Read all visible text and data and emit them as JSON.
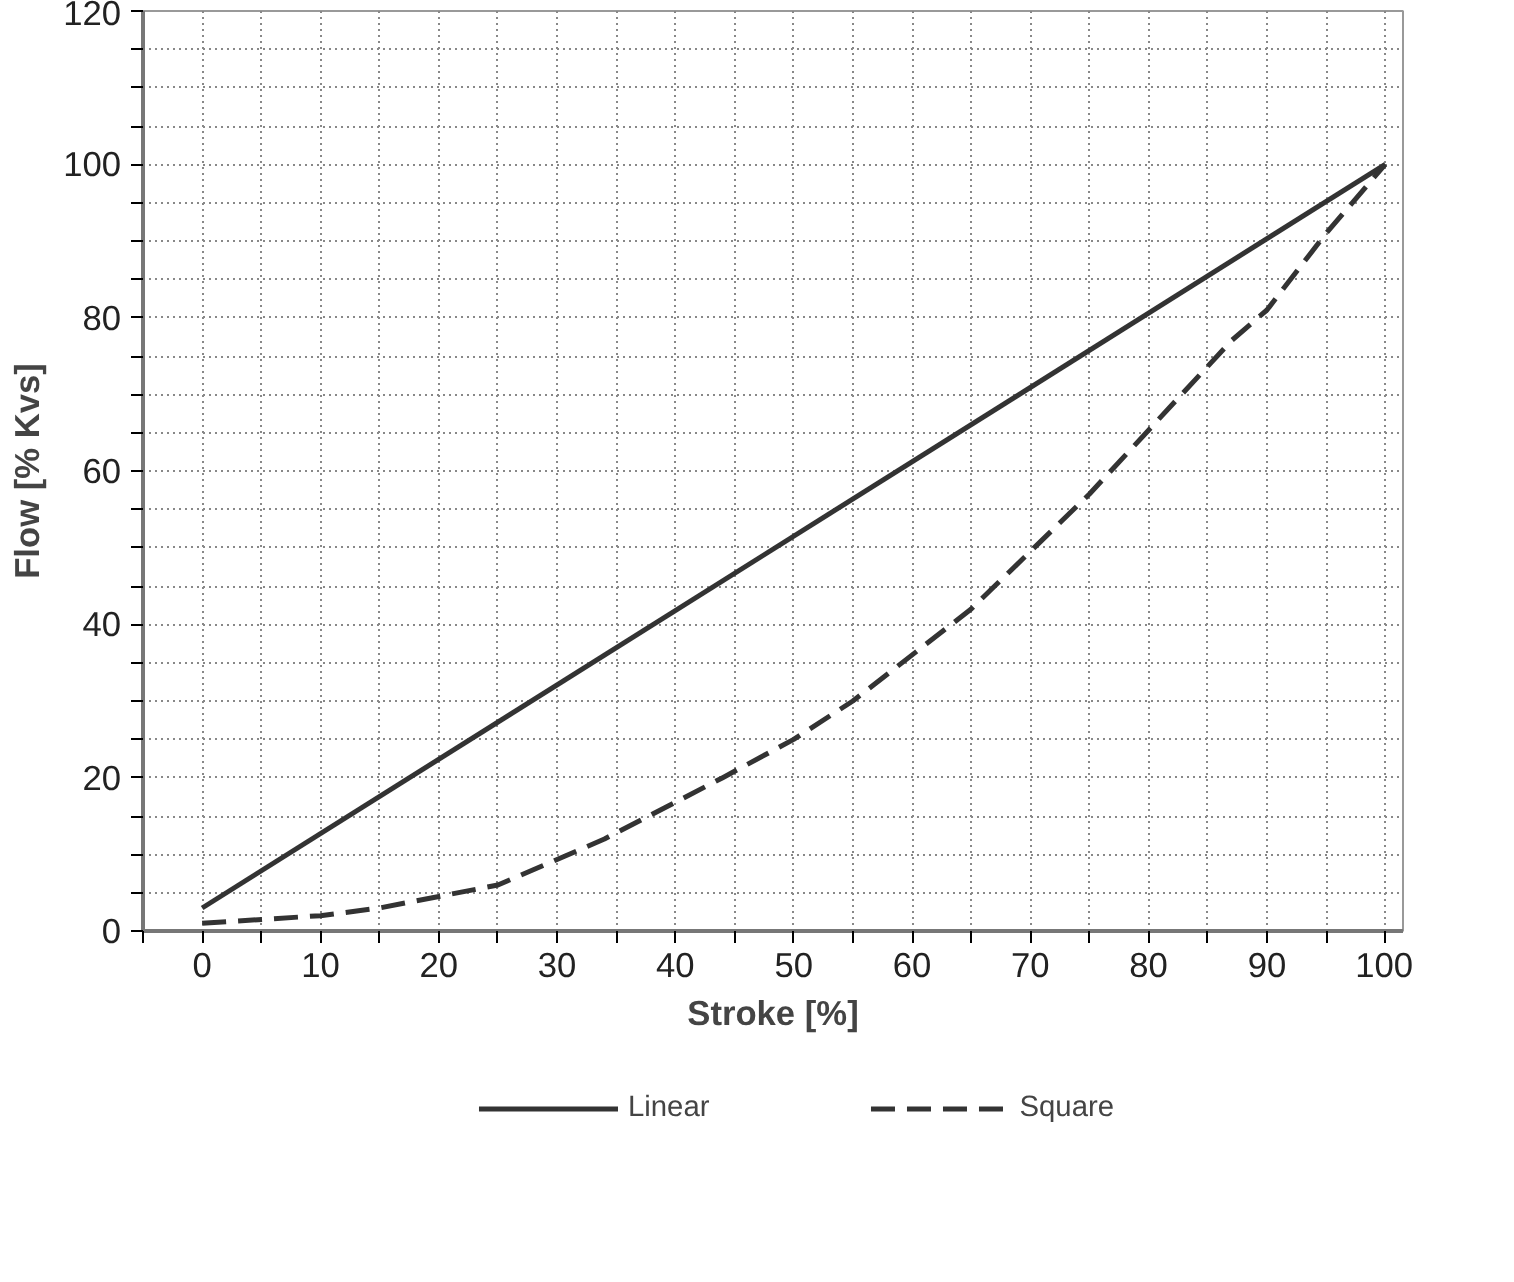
{
  "chart_data": {
    "type": "line",
    "xlabel": "Stroke [%]",
    "ylabel": "Flow [% Kvs]",
    "xlim": [
      -5,
      101.5
    ],
    "ylim": [
      0,
      120
    ],
    "xticks": [
      {
        "value": -5,
        "label": null
      },
      0,
      {
        "value": 5,
        "label": null
      },
      10,
      {
        "value": 15,
        "label": null
      },
      20,
      {
        "value": 25,
        "label": null
      },
      30,
      {
        "value": 35,
        "label": null
      },
      40,
      {
        "value": 45,
        "label": null
      },
      50,
      {
        "value": 55,
        "label": null
      },
      60,
      {
        "value": 65,
        "label": null
      },
      70,
      {
        "value": 75,
        "label": null
      },
      80,
      {
        "value": 85,
        "label": null
      },
      90,
      {
        "value": 95,
        "label": null
      },
      100
    ],
    "yticks": [
      0,
      {
        "value": 5,
        "label": null
      },
      {
        "value": 10,
        "label": null
      },
      {
        "value": 15,
        "label": null
      },
      20,
      {
        "value": 25,
        "label": null
      },
      {
        "value": 30,
        "label": null
      },
      {
        "value": 35,
        "label": null
      },
      40,
      {
        "value": 45,
        "label": null
      },
      {
        "value": 50,
        "label": null
      },
      {
        "value": 55,
        "label": null
      },
      60,
      {
        "value": 65,
        "label": null
      },
      {
        "value": 70,
        "label": null
      },
      {
        "value": 75,
        "label": null
      },
      80,
      {
        "value": 85,
        "label": null
      },
      {
        "value": 90,
        "label": null
      },
      {
        "value": 95,
        "label": null
      },
      100,
      {
        "value": 105,
        "label": null
      },
      {
        "value": 110,
        "label": null
      },
      {
        "value": 115,
        "label": null
      },
      120
    ],
    "grid": true,
    "legend": "bottom",
    "series": [
      {
        "name": "Linear",
        "color": "#333333",
        "line_style": "solid",
        "x": [
          0,
          100
        ],
        "values": [
          3,
          100
        ]
      },
      {
        "name": "Square",
        "color": "#333333",
        "line_style": "dashed",
        "x": [
          0,
          10,
          15,
          25,
          34,
          44,
          50,
          55,
          65,
          75,
          87,
          90,
          95,
          100
        ],
        "values": [
          1,
          2,
          3,
          6,
          12,
          20,
          25,
          30,
          42,
          57,
          77,
          81,
          91,
          100
        ]
      }
    ]
  }
}
